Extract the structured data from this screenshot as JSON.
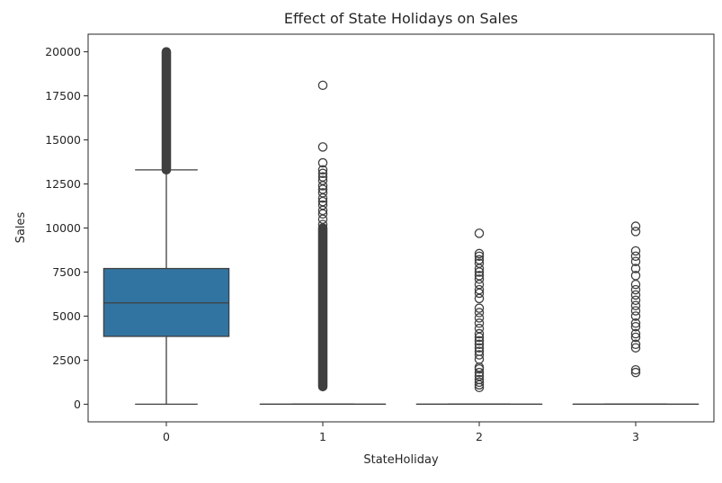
{
  "chart_data": {
    "type": "box",
    "title": "Effect of State Holidays on Sales",
    "xlabel": "StateHoliday",
    "ylabel": "Sales",
    "categories": [
      "0",
      "1",
      "2",
      "3"
    ],
    "ylim": [
      -1000,
      21000
    ],
    "yticks": [
      0,
      2500,
      5000,
      7500,
      10000,
      12500,
      15000,
      17500,
      20000
    ],
    "grid": false,
    "legend": "none",
    "box_color": "#3274a1",
    "boxes": [
      {
        "category": "0",
        "whisker_low": 0,
        "q1": 3850,
        "median": 5750,
        "q3": 7700,
        "whisker_high": 13300,
        "outlier_band": [
          13300,
          20000
        ],
        "outliers": []
      },
      {
        "category": "1",
        "whisker_low": 0,
        "q1": 0,
        "median": 0,
        "q3": 0,
        "whisker_high": 0,
        "outlier_band": [
          1000,
          10000
        ],
        "outliers": [
          10200,
          10500,
          10800,
          11000,
          11300,
          11500,
          11700,
          12000,
          12200,
          12400,
          12700,
          12900,
          13100,
          13300,
          13700,
          14600,
          18100
        ]
      },
      {
        "category": "2",
        "whisker_low": 0,
        "q1": 0,
        "median": 0,
        "q3": 0,
        "whisker_high": 0,
        "outlier_band": [],
        "outliers": [
          950,
          1100,
          1250,
          1400,
          1600,
          1800,
          2000,
          2100,
          2550,
          2800,
          3000,
          3200,
          3400,
          3600,
          3800,
          4000,
          4300,
          4600,
          4900,
          5200,
          5450,
          6000,
          6300,
          6500,
          6800,
          7100,
          7300,
          7500,
          7700,
          8000,
          8200,
          8400,
          8550,
          9700
        ]
      },
      {
        "category": "3",
        "whisker_low": 0,
        "q1": 0,
        "median": 0,
        "q3": 0,
        "whisker_high": 0,
        "outlier_band": [],
        "outliers": [
          1800,
          1950,
          3200,
          3400,
          3800,
          4000,
          4400,
          4600,
          5000,
          5300,
          5600,
          5900,
          6200,
          6500,
          6800,
          7300,
          7700,
          8100,
          8400,
          8700,
          9800,
          10100
        ]
      }
    ]
  }
}
